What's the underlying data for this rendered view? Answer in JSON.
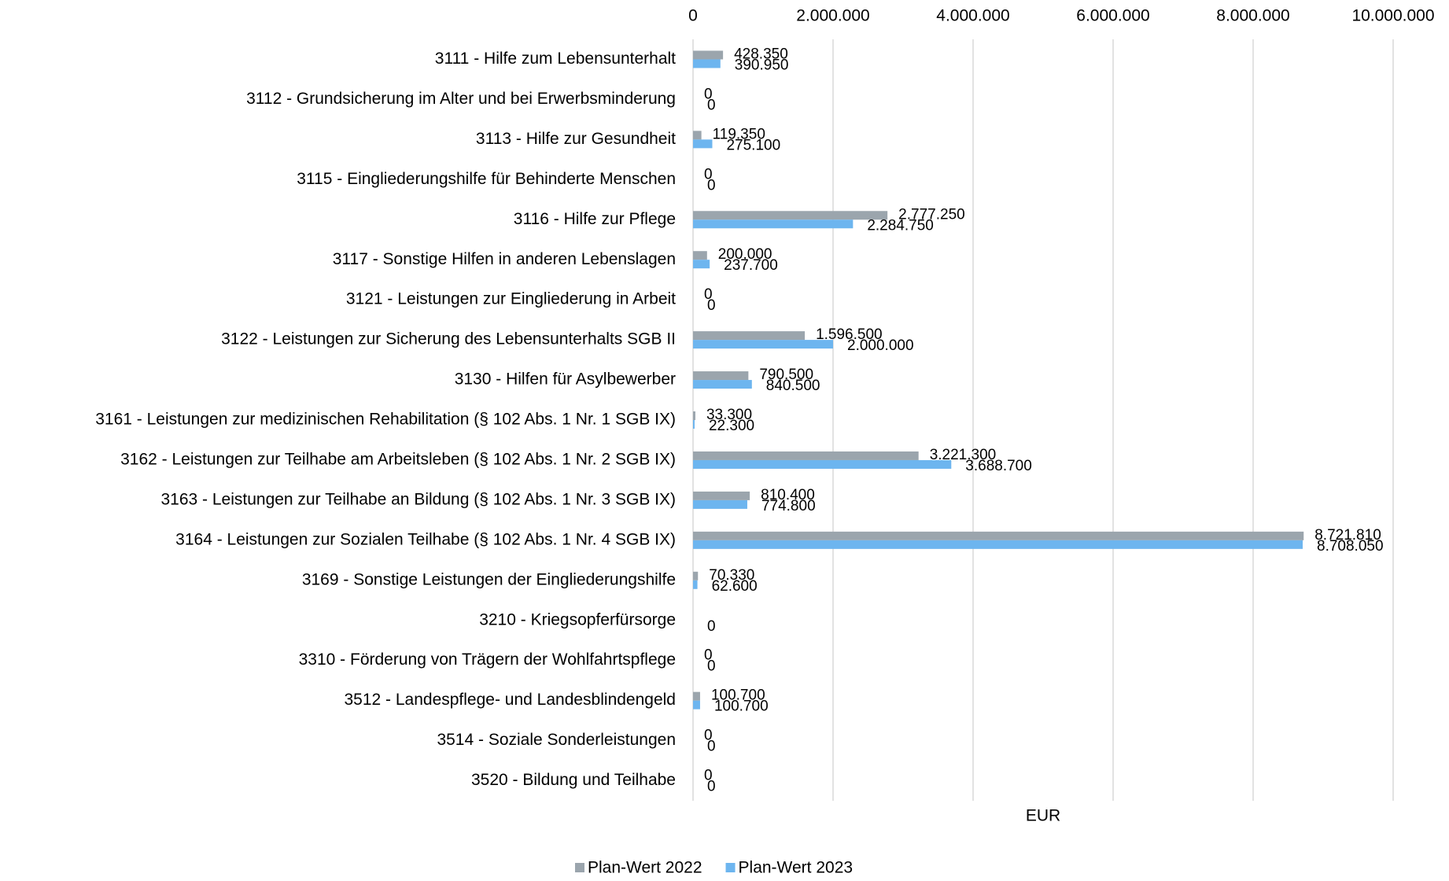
{
  "chart_data": {
    "type": "barh",
    "categories": [
      "3111 - Hilfe zum Lebensunterhalt",
      "3112 - Grundsicherung im Alter und bei Erwerbsminderung",
      "3113 - Hilfe zur Gesundheit",
      "3115 - Eingliederungshilfe für Behinderte Menschen",
      "3116 - Hilfe zur Pflege",
      "3117 - Sonstige Hilfen in anderen Lebenslagen",
      "3121 - Leistungen zur Eingliederung in Arbeit",
      "3122 - Leistungen zur Sicherung des Lebensunterhalts SGB II",
      "3130 - Hilfen für Asylbewerber",
      "3161 - Leistungen zur medizinischen Rehabilitation (§ 102 Abs. 1 Nr. 1 SGB IX)",
      "3162 - Leistungen zur Teilhabe am Arbeitsleben (§ 102 Abs. 1 Nr. 2 SGB IX)",
      "3163 - Leistungen zur Teilhabe an Bildung (§ 102 Abs. 1 Nr. 3 SGB IX)",
      "3164 - Leistungen zur Sozialen Teilhabe (§ 102 Abs. 1 Nr. 4 SGB IX)",
      "3169 - Sonstige Leistungen der Eingliederungshilfe",
      "3210 - Kriegsopferfürsorge",
      "3310 - Förderung von Trägern der Wohlfahrtspflege",
      "3512 - Landespflege- und Landesblindengeld",
      "3514 - Soziale Sonderleistungen",
      "3520 - Bildung und Teilhabe"
    ],
    "series": [
      {
        "name": "Plan-Wert 2022",
        "color": "#9ba5ad",
        "values": [
          428350,
          0,
          119350,
          0,
          2777250,
          200000,
          0,
          1596500,
          790500,
          33300,
          3221300,
          810400,
          8721810,
          70330,
          null,
          0,
          100700,
          0,
          0
        ],
        "value_labels": [
          "428.350",
          "0",
          "119.350",
          "0",
          "2.777.250",
          "200.000",
          "0",
          "1.596.500",
          "790.500",
          "33.300",
          "3.221.300",
          "810.400",
          "8.721.810",
          "70.330",
          null,
          "0",
          "100.700",
          "0",
          "0"
        ]
      },
      {
        "name": "Plan-Wert 2023",
        "color": "#6db5ef",
        "values": [
          390950,
          0,
          275100,
          0,
          2284750,
          237700,
          0,
          2000000,
          840500,
          22300,
          3688700,
          774800,
          8708050,
          62600,
          0,
          0,
          100700,
          0,
          0
        ],
        "value_labels": [
          "390.950",
          "0",
          "275.100",
          "0",
          "2.284.750",
          "237.700",
          "0",
          "2.000.000",
          "840.500",
          "22.300",
          "3.688.700",
          "774.800",
          "8.708.050",
          "62.600",
          "0",
          "0",
          "100.700",
          "0",
          "0"
        ]
      }
    ],
    "xlabel": "EUR",
    "xlim": [
      0,
      10000000
    ],
    "xticks": [
      0,
      {
        "value": 2000000,
        "label": "2.000.000"
      },
      {
        "value": 4000000,
        "label": "4.000.000"
      },
      {
        "value": 6000000,
        "label": "6.000.000"
      },
      {
        "value": 8000000,
        "label": "8.000.000"
      },
      {
        "value": 10000000,
        "label": "10.000.000"
      }
    ],
    "grid": true,
    "legend": "bottom"
  }
}
